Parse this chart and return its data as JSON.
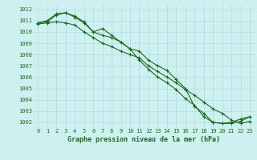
{
  "title": "Graphe pression niveau de la mer (hPa)",
  "bg_color": "#cff0f0",
  "grid_color": "#aadddd",
  "line_color": "#1a6b1a",
  "x_labels": [
    "0",
    "1",
    "2",
    "3",
    "4",
    "5",
    "6",
    "7",
    "8",
    "9",
    "10",
    "11",
    "12",
    "13",
    "14",
    "15",
    "16",
    "17",
    "18",
    "19",
    "20",
    "21",
    "22",
    "23"
  ],
  "ylim_min": 1001.5,
  "ylim_max": 1012.4,
  "yticks": [
    1002,
    1003,
    1004,
    1005,
    1006,
    1007,
    1008,
    1009,
    1010,
    1011,
    1012
  ],
  "series": [
    [
      1010.8,
      1010.9,
      1011.5,
      1011.7,
      1011.3,
      1010.8,
      1010.0,
      1010.3,
      1009.7,
      1009.1,
      1008.5,
      1008.3,
      1007.5,
      1007.0,
      1006.6,
      1005.8,
      1005.0,
      1003.4,
      1002.8,
      1002.0,
      1001.9,
      1001.9,
      1002.1,
      1002.5
    ],
    [
      1010.8,
      1011.0,
      1011.6,
      1011.7,
      1011.4,
      1010.9,
      1010.0,
      1009.7,
      1009.5,
      1009.1,
      1008.5,
      1007.5,
      1006.7,
      1006.0,
      1005.5,
      1004.9,
      1004.1,
      1003.5,
      1002.5,
      1002.0,
      1001.9,
      1002.0,
      1002.3,
      1002.5
    ],
    [
      1010.7,
      1010.8,
      1010.9,
      1010.8,
      1010.6,
      1010.0,
      1009.5,
      1009.0,
      1008.7,
      1008.3,
      1008.0,
      1007.7,
      1007.0,
      1006.5,
      1006.0,
      1005.5,
      1004.9,
      1004.4,
      1003.8,
      1003.2,
      1002.8,
      1002.2,
      1001.9,
      1002.1
    ]
  ],
  "ylabel_fontsize": 5.0,
  "xlabel_fontsize": 5.0,
  "title_fontsize": 6.0,
  "line_width": 0.8,
  "marker_size": 2.5
}
